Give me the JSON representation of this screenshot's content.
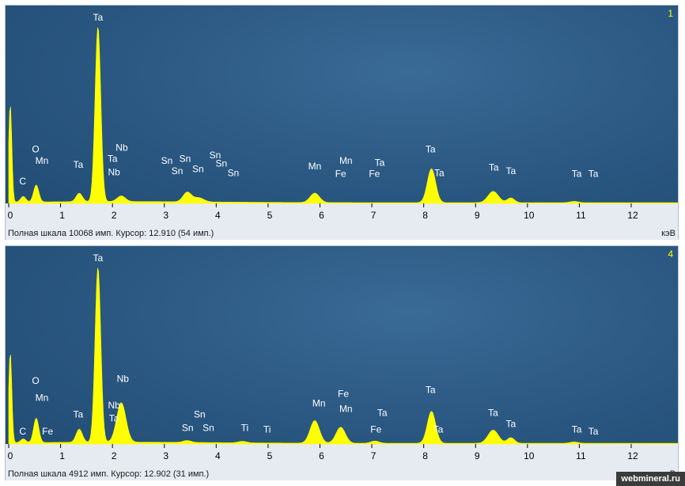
{
  "chart_data": [
    {
      "type": "line",
      "panel_index": "1",
      "xlabel": "кэВ",
      "xlim": [
        0,
        12.9
      ],
      "x_ticks": [
        "0",
        "1",
        "2",
        "3",
        "4",
        "5",
        "6",
        "7",
        "8",
        "9",
        "10",
        "11",
        "12"
      ],
      "ylim": [
        0,
        10068
      ],
      "full_scale_text": "Полная шкала 10068 имп. Курсор: 12.910  (54 имп.)",
      "spectrum_peaks": [
        {
          "x": 0.03,
          "y": 0.52,
          "w": 0.03
        },
        {
          "x": 0.28,
          "y": 0.03,
          "w": 0.05
        },
        {
          "x": 0.53,
          "y": 0.09,
          "w": 0.05
        },
        {
          "x": 1.36,
          "y": 0.045,
          "w": 0.06
        },
        {
          "x": 1.72,
          "y": 0.93,
          "w": 0.055
        },
        {
          "x": 2.17,
          "y": 0.03,
          "w": 0.08
        },
        {
          "x": 3.44,
          "y": 0.05,
          "w": 0.08
        },
        {
          "x": 3.66,
          "y": 0.022,
          "w": 0.1
        },
        {
          "x": 5.9,
          "y": 0.05,
          "w": 0.09
        },
        {
          "x": 8.15,
          "y": 0.18,
          "w": 0.08
        },
        {
          "x": 9.34,
          "y": 0.06,
          "w": 0.1
        },
        {
          "x": 9.68,
          "y": 0.025,
          "w": 0.07
        },
        {
          "x": 10.9,
          "y": 0.007,
          "w": 0.08
        }
      ],
      "peak_labels": [
        {
          "text": "Ta",
          "x": 1.72,
          "y": 0.97
        },
        {
          "text": "O",
          "x": 0.52,
          "y": 0.27
        },
        {
          "text": "C",
          "x": 0.27,
          "y": 0.1
        },
        {
          "text": "Mn",
          "x": 0.64,
          "y": 0.21
        },
        {
          "text": "Ta",
          "x": 1.34,
          "y": 0.19
        },
        {
          "text": "Nb",
          "x": 2.18,
          "y": 0.28
        },
        {
          "text": "Ta",
          "x": 2.0,
          "y": 0.22
        },
        {
          "text": "Nb",
          "x": 2.03,
          "y": 0.15
        },
        {
          "text": "Sn",
          "x": 3.05,
          "y": 0.21
        },
        {
          "text": "Sn",
          "x": 3.4,
          "y": 0.22
        },
        {
          "text": "Sn",
          "x": 3.25,
          "y": 0.155
        },
        {
          "text": "Sn",
          "x": 3.65,
          "y": 0.165
        },
        {
          "text": "Sn",
          "x": 3.98,
          "y": 0.24
        },
        {
          "text": "Sn",
          "x": 4.1,
          "y": 0.195
        },
        {
          "text": "Sn",
          "x": 4.33,
          "y": 0.145
        },
        {
          "text": "Mn",
          "x": 5.9,
          "y": 0.18
        },
        {
          "text": "Mn",
          "x": 6.5,
          "y": 0.21
        },
        {
          "text": "Fe",
          "x": 6.4,
          "y": 0.14
        },
        {
          "text": "Ta",
          "x": 7.15,
          "y": 0.2
        },
        {
          "text": "Fe",
          "x": 7.05,
          "y": 0.14
        },
        {
          "text": "Ta",
          "x": 8.13,
          "y": 0.27
        },
        {
          "text": "Ta",
          "x": 8.3,
          "y": 0.145
        },
        {
          "text": "Ta",
          "x": 9.35,
          "y": 0.175
        },
        {
          "text": "Ta",
          "x": 9.68,
          "y": 0.155
        },
        {
          "text": "Ta",
          "x": 10.95,
          "y": 0.14
        },
        {
          "text": "Ta",
          "x": 11.27,
          "y": 0.14
        }
      ]
    },
    {
      "type": "line",
      "panel_index": "4",
      "xlabel": "кэВ",
      "xlim": [
        0,
        12.9
      ],
      "x_ticks": [
        "0",
        "1",
        "2",
        "3",
        "4",
        "5",
        "6",
        "7",
        "8",
        "9",
        "10",
        "11",
        "12"
      ],
      "ylim": [
        0,
        4912
      ],
      "full_scale_text": "Полная шкала 4912 имп. Курсор: 12.902  (31 имп.)",
      "spectrum_peaks": [
        {
          "x": 0.03,
          "y": 0.48,
          "w": 0.03
        },
        {
          "x": 0.28,
          "y": 0.02,
          "w": 0.05
        },
        {
          "x": 0.53,
          "y": 0.13,
          "w": 0.05
        },
        {
          "x": 1.36,
          "y": 0.07,
          "w": 0.06
        },
        {
          "x": 1.72,
          "y": 0.93,
          "w": 0.055
        },
        {
          "x": 2.17,
          "y": 0.21,
          "w": 0.09
        },
        {
          "x": 3.44,
          "y": 0.01,
          "w": 0.08
        },
        {
          "x": 4.51,
          "y": 0.008,
          "w": 0.08
        },
        {
          "x": 5.9,
          "y": 0.12,
          "w": 0.09
        },
        {
          "x": 6.4,
          "y": 0.085,
          "w": 0.09
        },
        {
          "x": 7.06,
          "y": 0.012,
          "w": 0.08
        },
        {
          "x": 8.15,
          "y": 0.17,
          "w": 0.08
        },
        {
          "x": 9.34,
          "y": 0.07,
          "w": 0.1
        },
        {
          "x": 9.68,
          "y": 0.03,
          "w": 0.07
        },
        {
          "x": 10.9,
          "y": 0.007,
          "w": 0.08
        }
      ],
      "peak_labels": [
        {
          "text": "Ta",
          "x": 1.72,
          "y": 0.97
        },
        {
          "text": "O",
          "x": 0.52,
          "y": 0.32
        },
        {
          "text": "Mn",
          "x": 0.64,
          "y": 0.23
        },
        {
          "text": "C",
          "x": 0.27,
          "y": 0.05
        },
        {
          "text": "Fe",
          "x": 0.75,
          "y": 0.05
        },
        {
          "text": "Ta",
          "x": 1.34,
          "y": 0.14
        },
        {
          "text": "Nb",
          "x": 2.2,
          "y": 0.33
        },
        {
          "text": "Nb",
          "x": 2.03,
          "y": 0.19
        },
        {
          "text": "Ta",
          "x": 2.03,
          "y": 0.12
        },
        {
          "text": "Sn",
          "x": 3.68,
          "y": 0.14
        },
        {
          "text": "Sn",
          "x": 3.45,
          "y": 0.07
        },
        {
          "text": "Sn",
          "x": 3.85,
          "y": 0.07
        },
        {
          "text": "Ti",
          "x": 4.55,
          "y": 0.07
        },
        {
          "text": "Ti",
          "x": 4.98,
          "y": 0.06
        },
        {
          "text": "Mn",
          "x": 5.98,
          "y": 0.2
        },
        {
          "text": "Fe",
          "x": 6.45,
          "y": 0.25
        },
        {
          "text": "Mn",
          "x": 6.5,
          "y": 0.17
        },
        {
          "text": "Ta",
          "x": 7.2,
          "y": 0.15
        },
        {
          "text": "Fe",
          "x": 7.08,
          "y": 0.06
        },
        {
          "text": "Ta",
          "x": 8.13,
          "y": 0.27
        },
        {
          "text": "Ta",
          "x": 8.28,
          "y": 0.06
        },
        {
          "text": "Ta",
          "x": 9.34,
          "y": 0.15
        },
        {
          "text": "Ta",
          "x": 9.68,
          "y": 0.09
        },
        {
          "text": "Ta",
          "x": 10.95,
          "y": 0.06
        },
        {
          "text": "Ta",
          "x": 11.27,
          "y": 0.05
        }
      ]
    }
  ],
  "colors": {
    "spectrum": "#ffff00",
    "label": "#ffffff",
    "tick": "#000000"
  },
  "watermark": "webmineral.ru"
}
